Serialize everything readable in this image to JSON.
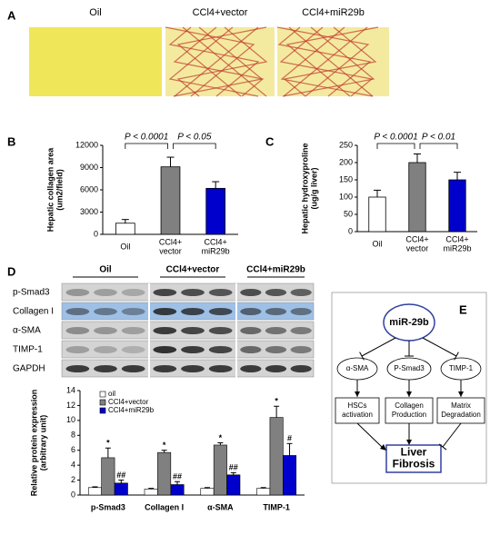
{
  "panel_a": {
    "letter": "A",
    "labels": [
      "Oil",
      "CCl4+vector",
      "CCl4+miR29b"
    ]
  },
  "chart_data": [
    {
      "type": "bar",
      "panel": "B",
      "ylabel": [
        "Hepatic collagen area",
        "(um2/field)"
      ],
      "categories": [
        [
          "Oil"
        ],
        [
          "CCl4+",
          "vector"
        ],
        [
          "CCl4+",
          "miR29b"
        ]
      ],
      "values": [
        1500,
        9100,
        6200
      ],
      "errors": [
        500,
        1300,
        900
      ],
      "colors": [
        "#ffffff",
        "#808080",
        "#0000cc"
      ],
      "ylim": [
        0,
        12000
      ],
      "yticks": [
        0,
        3000,
        6000,
        9000,
        12000
      ],
      "annotations": [
        "P < 0.0001",
        "P < 0.05"
      ]
    },
    {
      "type": "bar",
      "panel": "C",
      "ylabel": [
        "Hepatic hydroxyproline",
        "(ug/g liver)"
      ],
      "categories": [
        [
          "Oil"
        ],
        [
          "CCl4+",
          "vector"
        ],
        [
          "CCl4+",
          "miR29b"
        ]
      ],
      "values": [
        100,
        200,
        150
      ],
      "errors": [
        20,
        25,
        22
      ],
      "colors": [
        "#ffffff",
        "#808080",
        "#0000cc"
      ],
      "ylim": [
        0,
        250
      ],
      "yticks": [
        0,
        50,
        100,
        150,
        200,
        250
      ],
      "annotations": [
        "P < 0.0001",
        "P < 0.01"
      ]
    },
    {
      "type": "grouped_bar",
      "ylabel": [
        "Relative protein expression",
        "(arbitrary unit)"
      ],
      "categories": [
        [
          "p-Smad3"
        ],
        [
          "Collagen I"
        ],
        [
          "α-SMA"
        ],
        [
          "TIMP-1"
        ]
      ],
      "series": [
        {
          "name": "oil",
          "color": "#ffffff",
          "values": [
            1,
            0.8,
            0.9,
            0.9
          ],
          "errors": [
            0.1,
            0.1,
            0.1,
            0.1
          ]
        },
        {
          "name": "CCl4+vector",
          "color": "#808080",
          "values": [
            5,
            5.7,
            6.7,
            10.4
          ],
          "errors": [
            1.3,
            0.3,
            0.3,
            1.5
          ],
          "annotations": [
            "*",
            "*",
            "*",
            "*"
          ]
        },
        {
          "name": "CCl4+miR29b",
          "color": "#0000cc",
          "values": [
            1.6,
            1.4,
            2.7,
            5.3
          ],
          "errors": [
            0.4,
            0.4,
            0.3,
            1.6
          ],
          "annotations": [
            "##",
            "##",
            "##",
            "#"
          ]
        }
      ],
      "ylim": [
        0,
        14
      ],
      "yticks": [
        0,
        2,
        4,
        6,
        8,
        10,
        12,
        14
      ],
      "legend": "upper left"
    }
  ],
  "panel_d_blot": {
    "letter": "D",
    "groups": [
      "Oil",
      "CCl4+vector",
      "CCl4+miR29b"
    ],
    "rows": [
      "p-Smad3",
      "Collagen I",
      "α-SMA",
      "TIMP-1",
      "GAPDH"
    ]
  },
  "panel_e": {
    "letter": "E",
    "nodes": [
      [
        "miR-29b"
      ],
      [
        "α-SMA"
      ],
      [
        "P-Smad3"
      ],
      [
        "TIMP-1"
      ],
      [
        "HSCs",
        "activation"
      ],
      [
        "Collagen",
        "Production"
      ],
      [
        "Matrix",
        "Degradation"
      ],
      [
        "Liver",
        "Fibrosis"
      ]
    ]
  }
}
